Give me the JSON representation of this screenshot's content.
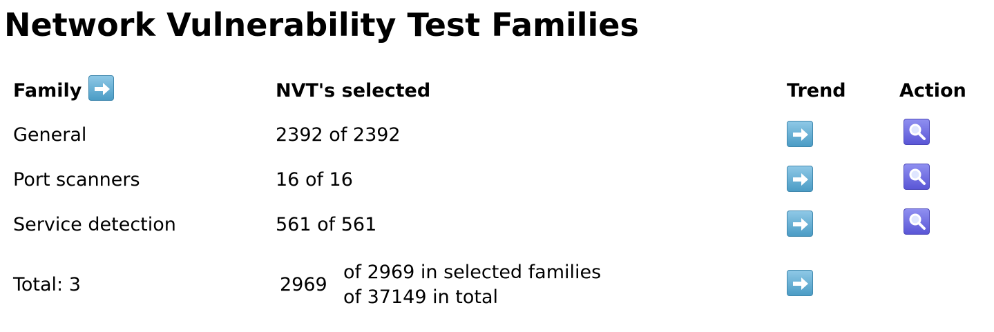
{
  "page": {
    "title": "Network Vulnerability Test Families"
  },
  "table": {
    "headers": {
      "family": "Family",
      "nvts_selected": "NVT's selected",
      "trend": "Trend",
      "action": "Action"
    },
    "rows": [
      {
        "family": "General",
        "nvts": "2392 of 2392"
      },
      {
        "family": "Port scanners",
        "nvts": "16 of 16"
      },
      {
        "family": "Service detection",
        "nvts": "561 of 561"
      }
    ],
    "total": {
      "label": "Total: 3",
      "count": "2969",
      "of_selected": "of 2969 in selected families",
      "of_total": "of 37149 in total"
    }
  },
  "icons": {
    "trend": "arrow-right-icon",
    "family_sort": "arrow-right-icon",
    "details": "magnifier-icon"
  },
  "colors": {
    "trend_icon": "#5aa7d0",
    "details_icon": "#6a66e0"
  }
}
